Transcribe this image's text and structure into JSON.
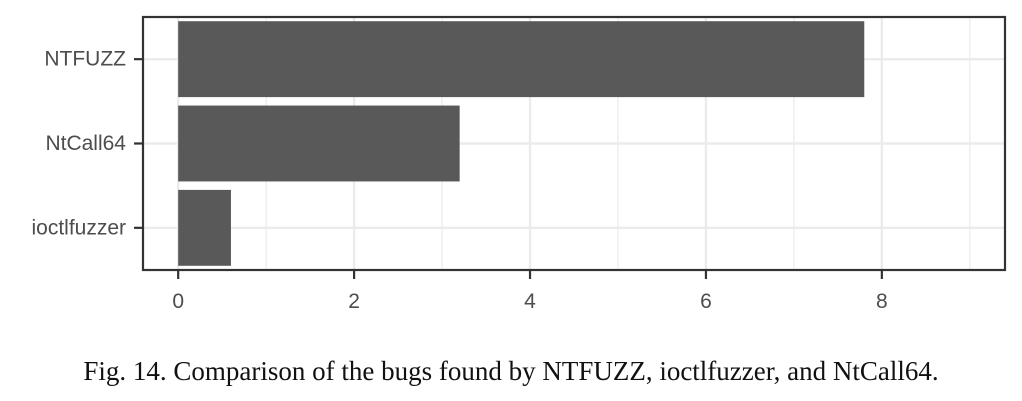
{
  "chart_data": {
    "type": "bar",
    "orientation": "horizontal",
    "categories": [
      "NTFUZZ",
      "NtCall64",
      "ioctlfuzzer"
    ],
    "values": [
      7.8,
      3.2,
      0.6
    ],
    "xlim": [
      -0.4,
      9.4
    ],
    "xticks": [
      "0",
      "2",
      "4",
      "6",
      "8"
    ],
    "grid": true,
    "bar_color": "#595959",
    "grid_color": "#ebebeb",
    "title": "",
    "xlabel": "",
    "ylabel": ""
  },
  "caption": "Fig. 14.  Comparison of the bugs found by NTFUZZ, ioctlfuzzer, and NtCall64."
}
